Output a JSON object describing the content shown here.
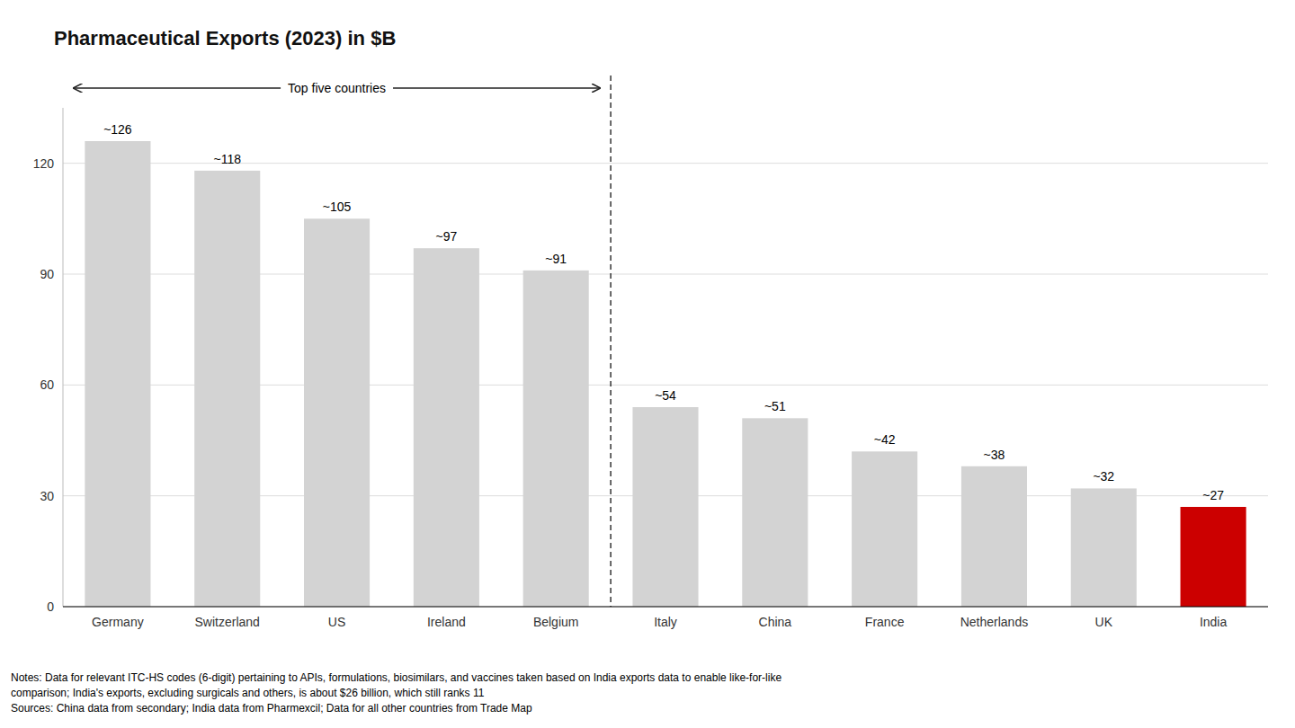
{
  "chart_data": {
    "type": "bar",
    "title": "Pharmaceutical Exports (2023) in $B",
    "categories": [
      "Germany",
      "Switzerland",
      "US",
      "Ireland",
      "Belgium",
      "Italy",
      "China",
      "France",
      "Netherlands",
      "UK",
      "India"
    ],
    "values": [
      126,
      118,
      105,
      97,
      91,
      54,
      51,
      42,
      38,
      32,
      27
    ],
    "value_labels": [
      "~126",
      "~118",
      "~105",
      "~97",
      "~91",
      "~54",
      "~51",
      "~42",
      "~38",
      "~32",
      "~27"
    ],
    "data_labels": true,
    "colors": [
      "#d3d3d3",
      "#d3d3d3",
      "#d3d3d3",
      "#d3d3d3",
      "#d3d3d3",
      "#d3d3d3",
      "#d3d3d3",
      "#d3d3d3",
      "#d3d3d3",
      "#d3d3d3",
      "#cc0000"
    ],
    "ylim": [
      0,
      135
    ],
    "yticks": [
      0,
      30,
      60,
      90,
      120
    ],
    "grid": true,
    "annotations": [
      {
        "text": "Top five countries",
        "span": [
          "Germany",
          "Belgium"
        ]
      }
    ],
    "note": "Notes: Data for relevant ITC-HS codes (6-digit) pertaining to APIs, formulations, biosimilars, and vaccines taken based on India exports data to enable like-for-like\ncomparison; India's exports, excluding surgicals and others, is about $26 billion, which still ranks 11\nSources: China data from secondary; India data from Pharmexcil; Data for all other countries from Trade Map"
  }
}
